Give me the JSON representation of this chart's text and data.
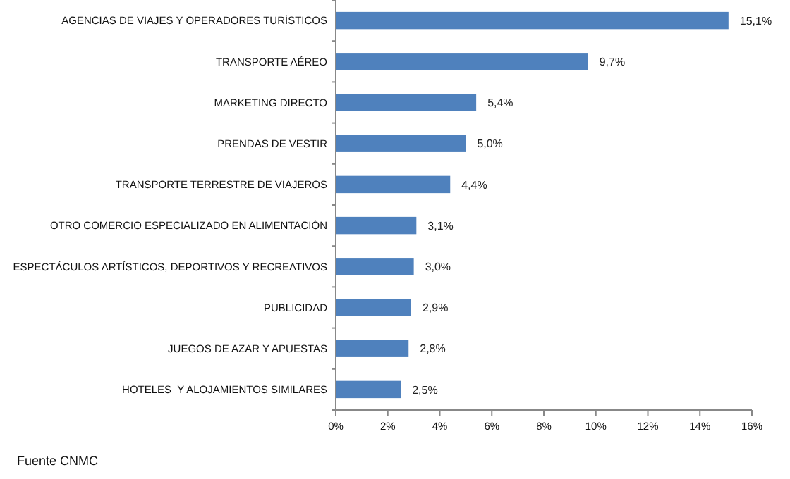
{
  "chart_data": {
    "type": "bar",
    "orientation": "horizontal",
    "categories": [
      "AGENCIAS DE VIAJES Y OPERADORES TURÍSTICOS",
      "TRANSPORTE AÉREO",
      "MARKETING DIRECTO",
      "PRENDAS DE VESTIR",
      "TRANSPORTE TERRESTRE DE VIAJEROS",
      "OTRO COMERCIO ESPECIALIZADO EN ALIMENTACIÓN",
      "ESPECTÁCULOS ARTÍSTICOS, DEPORTIVOS Y RECREATIVOS",
      "PUBLICIDAD",
      "JUEGOS DE AZAR Y APUESTAS",
      "HOTELES  Y ALOJAMIENTOS SIMILARES"
    ],
    "values": [
      15.1,
      9.7,
      5.4,
      5.0,
      4.4,
      3.1,
      3.0,
      2.9,
      2.8,
      2.5
    ],
    "value_labels": [
      "15,1%",
      "9,7%",
      "5,4%",
      "5,0%",
      "4,4%",
      "3,1%",
      "3,0%",
      "2,9%",
      "2,8%",
      "2,5%"
    ],
    "color": "#4f81bd",
    "xlim": [
      0,
      16
    ],
    "xticks": [
      {
        "value": 0,
        "label": "0%"
      },
      {
        "value": 2,
        "label": "2%"
      },
      {
        "value": 4,
        "label": "4%"
      },
      {
        "value": 6,
        "label": "6%"
      },
      {
        "value": 8,
        "label": "8%"
      },
      {
        "value": 10,
        "label": "10%"
      },
      {
        "value": 12,
        "label": "12%"
      },
      {
        "value": 14,
        "label": "14%"
      },
      {
        "value": 16,
        "label": "16%"
      }
    ],
    "grid": false,
    "annotations": [
      "Fuente CNMC"
    ]
  }
}
